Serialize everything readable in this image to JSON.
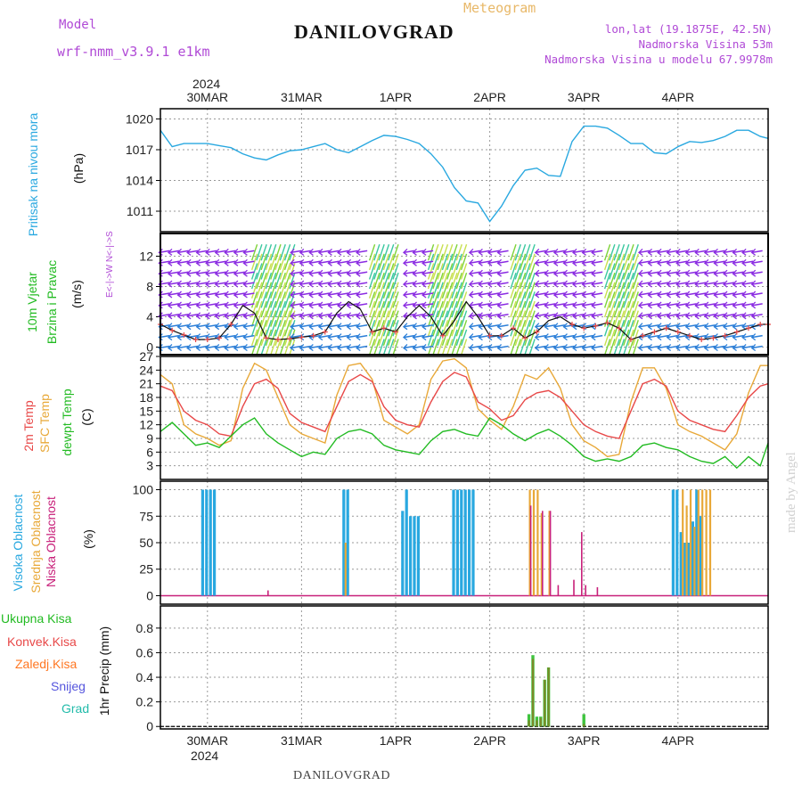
{
  "header": {
    "model_label": "Model",
    "model_name": "wrf-nmm_v3.9.1  e1km",
    "title": "DANILOVGRAD",
    "subtitle": "Meteogram",
    "lonlat": "lon,lat (19.1875E, 42.5N)",
    "elevation": "Nadmorska Visina 53m",
    "model_elevation": "Nadmorska Visina u modelu 67.9978m",
    "footer_title": "DANILOVGRAD",
    "watermark": "made by Angel",
    "year": "2024"
  },
  "colors": {
    "pressure": "#29a8e0",
    "wind_label": "#22bb22",
    "direction_label": "#b04ad6",
    "temp2m": "#e84848",
    "sfc_temp": "#e8a838",
    "dewpt": "#22bb22",
    "high_cloud": "#29a8e0",
    "mid_cloud": "#e8a838",
    "low_cloud": "#c8207a",
    "total_precip": "#3ec43e",
    "conv_precip": "#e84848",
    "frozen_precip": "#ff7722",
    "snow": "#5555dd",
    "hail": "#22bbaa"
  },
  "chart_data": [
    {
      "type": "line",
      "title": "Pritisak na nivou mora",
      "ylabel": "(hPa)",
      "ylim": [
        1009,
        1021
      ],
      "yticks": [
        1011,
        1014,
        1017,
        1020
      ],
      "grid": true,
      "x_labels": [
        "30MAR",
        "31MAR",
        "1APR",
        "2APR",
        "3APR",
        "4APR"
      ],
      "x_hours_range": [
        -12,
        143
      ],
      "series": [
        {
          "name": "Pritisak na nivou mora",
          "x": [
            -12,
            -9,
            -6,
            -3,
            0,
            3,
            6,
            9,
            12,
            15,
            18,
            21,
            24,
            27,
            30,
            33,
            36,
            39,
            42,
            45,
            48,
            51,
            54,
            57,
            60,
            63,
            66,
            69,
            72,
            75,
            78,
            81,
            84,
            87,
            90,
            93,
            96,
            99,
            102,
            105,
            108,
            111,
            114,
            117,
            120,
            123,
            126,
            129,
            132,
            135,
            138,
            141,
            143
          ],
          "values": [
            1018.9,
            1017.3,
            1017.6,
            1017.6,
            1017.6,
            1017.4,
            1017.2,
            1016.6,
            1016.2,
            1016.0,
            1016.5,
            1016.9,
            1017.0,
            1017.3,
            1017.6,
            1017.0,
            1016.7,
            1017.3,
            1017.9,
            1018.4,
            1018.3,
            1018.0,
            1017.6,
            1016.6,
            1015.3,
            1013.3,
            1012.0,
            1011.8,
            1010.0,
            1011.5,
            1013.5,
            1015.0,
            1015.2,
            1014.5,
            1014.4,
            1017.8,
            1019.3,
            1019.3,
            1019.1,
            1018.4,
            1017.6,
            1017.6,
            1016.7,
            1016.6,
            1017.3,
            1017.8,
            1017.7,
            1017.9,
            1018.3,
            1018.9,
            1018.9,
            1018.3,
            1018.1
          ]
        }
      ]
    },
    {
      "type": "line",
      "title": "10m Vjetar Brzina i Pravac",
      "ylabel": "(m/s)",
      "ylim": [
        -1,
        15
      ],
      "yticks": [
        0,
        4,
        8,
        12
      ],
      "direction_key": "E<-|->W  N<-|->S",
      "grid": true,
      "series": [
        {
          "name": "10m Vjetar Brzina i Pravac",
          "x": [
            -12,
            -9,
            -6,
            -3,
            0,
            3,
            6,
            9,
            12,
            15,
            18,
            21,
            24,
            27,
            30,
            33,
            36,
            39,
            42,
            45,
            48,
            51,
            54,
            57,
            60,
            63,
            66,
            69,
            72,
            75,
            78,
            81,
            84,
            87,
            90,
            93,
            96,
            99,
            102,
            105,
            108,
            111,
            114,
            117,
            120,
            123,
            126,
            129,
            132,
            135,
            138,
            141,
            143
          ],
          "values": [
            3.0,
            2.2,
            1.6,
            1.0,
            1.0,
            1.2,
            3.0,
            5.5,
            4.5,
            1.2,
            1.0,
            1.1,
            1.3,
            1.5,
            2.0,
            4.5,
            6.0,
            5.0,
            2.0,
            2.5,
            2.0,
            4.0,
            5.5,
            4.0,
            1.5,
            3.5,
            6.0,
            4.0,
            1.5,
            1.5,
            2.5,
            1.2,
            2.0,
            3.5,
            4.0,
            3.0,
            2.5,
            2.8,
            3.2,
            2.5,
            1.0,
            1.5,
            2.0,
            2.5,
            2.0,
            1.5,
            1.0,
            1.2,
            1.5,
            2.0,
            2.5,
            3.0,
            3.0
          ]
        }
      ]
    },
    {
      "type": "line",
      "title": "2m Temp / SFC Temp / dewpt Temp",
      "ylabel": "(C)",
      "ylim": [
        0,
        27
      ],
      "yticks": [
        3,
        6,
        9,
        12,
        15,
        18,
        21,
        24,
        27
      ],
      "grid": true,
      "series": [
        {
          "name": "2m Temp",
          "x": [
            -12,
            -9,
            -6,
            -3,
            0,
            3,
            6,
            9,
            12,
            15,
            18,
            21,
            24,
            27,
            30,
            33,
            36,
            39,
            42,
            45,
            48,
            51,
            54,
            57,
            60,
            63,
            66,
            69,
            72,
            75,
            78,
            81,
            84,
            87,
            90,
            93,
            96,
            99,
            102,
            105,
            108,
            111,
            114,
            117,
            120,
            123,
            126,
            129,
            132,
            135,
            138,
            141,
            143
          ],
          "values": [
            20.5,
            19.5,
            15.0,
            13.0,
            12.0,
            10.0,
            9.5,
            16.0,
            21.0,
            22.0,
            20.0,
            14.5,
            12.5,
            11.5,
            10.5,
            16.0,
            21.5,
            23.0,
            21.5,
            16.0,
            13.0,
            12.0,
            11.5,
            17.0,
            21.5,
            23.5,
            22.5,
            17.0,
            15.5,
            13.0,
            14.0,
            17.5,
            19.0,
            19.5,
            18.0,
            15.0,
            12.0,
            10.5,
            9.5,
            9.0,
            15.0,
            21.0,
            22.0,
            20.5,
            15.0,
            13.0,
            12.0,
            11.0,
            10.5,
            14.0,
            18.0,
            20.5,
            21.0
          ]
        },
        {
          "name": "SFC Temp",
          "x": [
            -12,
            -9,
            -6,
            -3,
            0,
            3,
            6,
            9,
            12,
            15,
            18,
            21,
            24,
            27,
            30,
            33,
            36,
            39,
            42,
            45,
            48,
            51,
            54,
            57,
            60,
            63,
            66,
            69,
            72,
            75,
            78,
            81,
            84,
            87,
            90,
            93,
            96,
            99,
            102,
            105,
            108,
            111,
            114,
            117,
            120,
            123,
            126,
            129,
            132,
            135,
            138,
            141,
            143
          ],
          "values": [
            23.0,
            21.0,
            12.0,
            10.0,
            9.0,
            7.5,
            8.5,
            20.0,
            25.5,
            24.0,
            18.0,
            12.0,
            10.0,
            9.0,
            8.0,
            18.5,
            25.0,
            25.5,
            22.0,
            13.0,
            11.5,
            10.0,
            12.0,
            22.0,
            26.0,
            26.5,
            24.5,
            15.5,
            13.0,
            11.0,
            16.0,
            23.0,
            22.0,
            24.5,
            20.0,
            12.0,
            8.5,
            7.0,
            5.0,
            5.5,
            17.0,
            24.5,
            24.5,
            20.0,
            12.0,
            10.5,
            9.5,
            8.0,
            6.5,
            10.0,
            19.0,
            25.0,
            25.0
          ]
        },
        {
          "name": "dewpt Temp",
          "x": [
            -12,
            -9,
            -6,
            -3,
            0,
            3,
            6,
            9,
            12,
            15,
            18,
            21,
            24,
            27,
            30,
            33,
            36,
            39,
            42,
            45,
            48,
            51,
            54,
            57,
            60,
            63,
            66,
            69,
            72,
            75,
            78,
            81,
            84,
            87,
            90,
            93,
            96,
            99,
            102,
            105,
            108,
            111,
            114,
            117,
            120,
            123,
            126,
            129,
            132,
            135,
            138,
            141,
            143
          ],
          "values": [
            10.5,
            12.5,
            10.0,
            7.5,
            8.0,
            7.0,
            9.5,
            12.0,
            13.5,
            10.0,
            8.0,
            6.5,
            5.0,
            6.0,
            5.5,
            9.0,
            10.5,
            11.0,
            10.0,
            7.5,
            6.5,
            6.0,
            5.5,
            8.5,
            10.5,
            11.0,
            10.0,
            9.5,
            13.5,
            12.0,
            10.0,
            8.5,
            10.0,
            11.0,
            9.5,
            7.5,
            5.0,
            4.0,
            4.5,
            4.0,
            5.0,
            7.5,
            8.0,
            7.0,
            6.5,
            5.0,
            4.0,
            3.5,
            5.0,
            2.5,
            5.0,
            3.0,
            8.0
          ]
        }
      ]
    },
    {
      "type": "bar",
      "title": "Visoka Oblacnost / Srednja Oblacnost / Niska Oblacnost",
      "ylabel": "(%)",
      "ylim": [
        -8,
        108
      ],
      "yticks": [
        0,
        25,
        50,
        75,
        100
      ],
      "grid": true,
      "series": [
        {
          "name": "Visoka Oblacnost",
          "x": [
            -1,
            0,
            1,
            2,
            35,
            36,
            50,
            51,
            52,
            53,
            54,
            63,
            64,
            65,
            66,
            67,
            68,
            119,
            120,
            121,
            122,
            123,
            124,
            125,
            126
          ],
          "values": [
            100,
            100,
            100,
            100,
            100,
            100,
            80,
            100,
            75,
            75,
            75,
            100,
            100,
            100,
            100,
            100,
            100,
            100,
            100,
            60,
            50,
            50,
            70,
            100,
            75
          ]
        },
        {
          "name": "Srednja Oblacnost",
          "x": [
            35,
            36,
            82,
            83,
            84,
            85,
            87,
            121,
            122,
            123,
            124,
            125,
            126,
            127,
            128
          ],
          "values": [
            50,
            0,
            100,
            100,
            100,
            78,
            80,
            100,
            85,
            100,
            65,
            100,
            100,
            100,
            100
          ]
        },
        {
          "name": "Niska Oblacnost",
          "x": [
            15,
            82,
            85,
            87,
            89,
            93,
            95,
            96,
            99
          ],
          "values": [
            5,
            85,
            80,
            80,
            10,
            15,
            60,
            10,
            8
          ]
        }
      ]
    },
    {
      "type": "bar",
      "title": "1hr Precip",
      "ylabel": "(mm)",
      "ylim": [
        -0.02,
        0.98
      ],
      "yticks": [
        0,
        0.2,
        0.4,
        0.6,
        0.8
      ],
      "grid": true,
      "legend": [
        "Ukupna Kisa",
        "Konvek.Kisa",
        "Zaledj.Kisa",
        "Snijeg",
        "Grad"
      ],
      "series": [
        {
          "name": "Ukupna Kisa",
          "x": [
            82,
            83,
            84,
            85,
            86,
            87,
            96
          ],
          "values": [
            0.1,
            0.58,
            0.08,
            0.08,
            0.38,
            0.48,
            0.1
          ]
        },
        {
          "name": "Konvek.Kisa",
          "x": [
            82,
            83,
            84,
            85,
            86,
            87,
            96
          ],
          "values": [
            0.05,
            0.55,
            0.05,
            0.07,
            0.38,
            0.48,
            0.02
          ]
        }
      ]
    }
  ],
  "panel_labels": {
    "pressure": [
      "Pritisak na nivou mora"
    ],
    "pressure_unit": "(hPa)",
    "wind": [
      "10m Vjetar",
      "Brzina i Pravac"
    ],
    "wind_unit": "(m/s)",
    "temp": [
      "2m Temp",
      "SFC Temp",
      "dewpt Temp"
    ],
    "temp_unit": "(C)",
    "cloud": [
      "Visoka Oblacnost",
      "Srednja Oblacnost",
      "Niska Oblacnost"
    ],
    "cloud_unit": "(%)",
    "precip_legend": [
      "Ukupna Kisa",
      "Konvek.Kisa",
      "Zaledj.Kisa",
      "Snijeg",
      "Grad"
    ],
    "precip_unit": "1hr Precip (mm)"
  }
}
